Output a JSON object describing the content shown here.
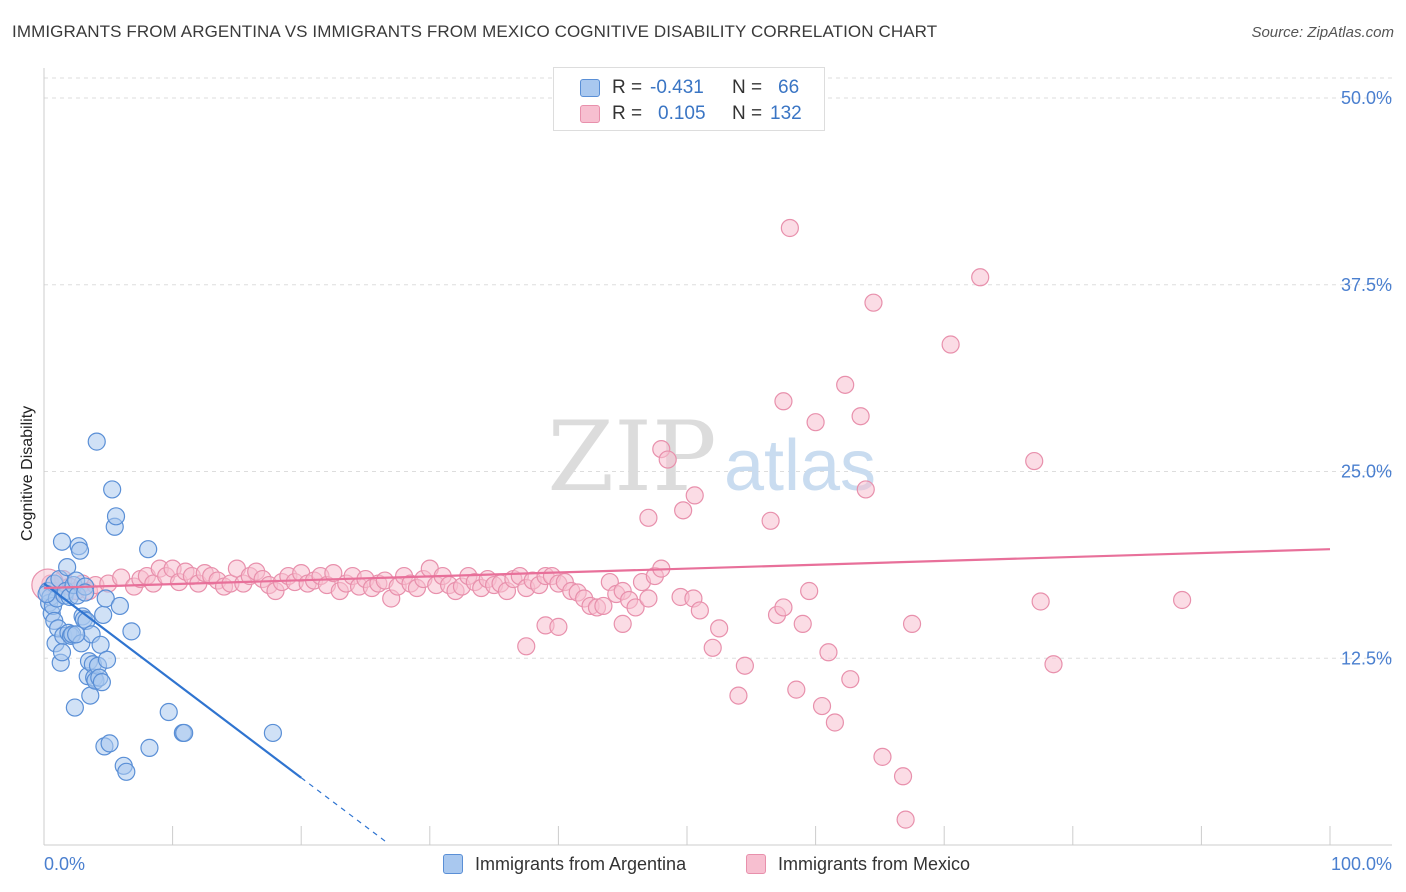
{
  "header": {
    "title": "IMMIGRANTS FROM ARGENTINA VS IMMIGRANTS FROM MEXICO COGNITIVE DISABILITY CORRELATION CHART",
    "source": "Source: ZipAtlas.com"
  },
  "watermark": {
    "zip": "ZIP",
    "atlas": "atlas"
  },
  "legend": {
    "rows": [
      {
        "r_label": "R =",
        "r_value": "-0.431",
        "n_label": "N =",
        "n_value": "66"
      },
      {
        "r_label": "R =",
        "r_value": "0.105",
        "n_label": "N =",
        "n_value": "132"
      }
    ]
  },
  "bottom_legend": {
    "argentina": "Immigrants from Argentina",
    "mexico": "Immigrants from Mexico"
  },
  "colors": {
    "argentina_fill": "#a9c8ef",
    "argentina_stroke": "#5a8fd6",
    "argentina_line": "#2f74d0",
    "mexico_fill": "#f7bfd0",
    "mexico_stroke": "#e890ac",
    "mexico_line": "#e8709a",
    "tick_label": "#4a7fcf"
  },
  "chart_data": {
    "type": "scatter",
    "title": "IMMIGRANTS FROM ARGENTINA VS IMMIGRANTS FROM MEXICO COGNITIVE DISABILITY CORRELATION CHART",
    "xlabel": "",
    "ylabel": "Cognitive Disability",
    "xlim": [
      0,
      100
    ],
    "ylim": [
      0,
      50
    ],
    "x_tick_labels": [
      "0.0%",
      "100.0%"
    ],
    "y_ticks": [
      12.5,
      25.0,
      37.5,
      50.0
    ],
    "y_tick_labels": [
      "12.5%",
      "25.0%",
      "37.5%",
      "50.0%"
    ],
    "grid": true,
    "series": [
      {
        "name": "Immigrants from Argentina",
        "R": -0.431,
        "N": 66,
        "trend": {
          "x0": 0,
          "y0": 17.5,
          "x1": 20,
          "y1": 4.5,
          "dash_to_x": 26.7
        },
        "points": [
          [
            0.3,
            17.0
          ],
          [
            0.4,
            16.2
          ],
          [
            0.5,
            16.6
          ],
          [
            0.6,
            15.5
          ],
          [
            0.7,
            16.0
          ],
          [
            0.8,
            17.5
          ],
          [
            0.8,
            15.0
          ],
          [
            0.9,
            13.5
          ],
          [
            1.0,
            16.5
          ],
          [
            1.1,
            14.5
          ],
          [
            1.2,
            17.8
          ],
          [
            1.3,
            12.2
          ],
          [
            1.4,
            20.3
          ],
          [
            1.5,
            14.0
          ],
          [
            1.6,
            16.7
          ],
          [
            1.7,
            17.0
          ],
          [
            1.8,
            18.6
          ],
          [
            1.9,
            14.2
          ],
          [
            2.0,
            16.6
          ],
          [
            2.1,
            14.0
          ],
          [
            2.2,
            14.1
          ],
          [
            2.3,
            17.4
          ],
          [
            2.4,
            9.2
          ],
          [
            2.5,
            17.7
          ],
          [
            2.6,
            16.7
          ],
          [
            2.7,
            20.0
          ],
          [
            2.8,
            19.7
          ],
          [
            2.9,
            13.5
          ],
          [
            3.0,
            15.3
          ],
          [
            3.1,
            15.1
          ],
          [
            3.2,
            17.3
          ],
          [
            3.3,
            15.0
          ],
          [
            3.4,
            11.3
          ],
          [
            3.5,
            12.3
          ],
          [
            3.6,
            10.0
          ],
          [
            3.7,
            14.1
          ],
          [
            3.8,
            12.1
          ],
          [
            3.9,
            11.2
          ],
          [
            4.0,
            11.0
          ],
          [
            4.1,
            27.0
          ],
          [
            4.2,
            12.0
          ],
          [
            4.3,
            11.2
          ],
          [
            4.4,
            13.4
          ],
          [
            4.5,
            10.9
          ],
          [
            4.6,
            15.4
          ],
          [
            4.7,
            6.6
          ],
          [
            4.8,
            16.5
          ],
          [
            4.9,
            12.4
          ],
          [
            5.1,
            6.8
          ],
          [
            5.3,
            23.8
          ],
          [
            5.5,
            21.3
          ],
          [
            5.6,
            22.0
          ],
          [
            5.9,
            16.0
          ],
          [
            6.2,
            5.3
          ],
          [
            6.4,
            4.9
          ],
          [
            6.8,
            14.3
          ],
          [
            8.1,
            19.8
          ],
          [
            8.2,
            6.5
          ],
          [
            9.7,
            8.9
          ],
          [
            10.8,
            7.5
          ],
          [
            10.9,
            7.5
          ],
          [
            17.8,
            7.5
          ],
          [
            1.4,
            12.9
          ],
          [
            2.5,
            14.1
          ],
          [
            3.2,
            16.9
          ],
          [
            0.2,
            16.8
          ]
        ]
      },
      {
        "name": "Immigrants from Mexico",
        "R": 0.105,
        "N": 132,
        "trend": {
          "x0": 0,
          "y0": 17.2,
          "x1": 100,
          "y1": 19.8
        },
        "points": [
          [
            0.5,
            17.5
          ],
          [
            1.0,
            17.0
          ],
          [
            1.5,
            17.8
          ],
          [
            2.0,
            17.3
          ],
          [
            2.5,
            17.0
          ],
          [
            3.0,
            17.5
          ],
          [
            3.5,
            17.0
          ],
          [
            4.0,
            17.4
          ],
          [
            5.0,
            17.5
          ],
          [
            6.0,
            17.9
          ],
          [
            7.0,
            17.3
          ],
          [
            7.5,
            17.8
          ],
          [
            8.0,
            18.0
          ],
          [
            8.5,
            17.5
          ],
          [
            9.0,
            18.5
          ],
          [
            9.5,
            18.0
          ],
          [
            10.0,
            18.5
          ],
          [
            10.5,
            17.6
          ],
          [
            11.0,
            18.3
          ],
          [
            11.5,
            18.0
          ],
          [
            12.0,
            17.5
          ],
          [
            12.5,
            18.2
          ],
          [
            13.0,
            18.0
          ],
          [
            13.5,
            17.7
          ],
          [
            14.0,
            17.3
          ],
          [
            14.5,
            17.5
          ],
          [
            15.0,
            18.5
          ],
          [
            15.5,
            17.5
          ],
          [
            16.0,
            18.0
          ],
          [
            16.5,
            18.3
          ],
          [
            17.0,
            17.8
          ],
          [
            17.5,
            17.4
          ],
          [
            18.0,
            17.0
          ],
          [
            18.5,
            17.6
          ],
          [
            19.0,
            18.0
          ],
          [
            19.5,
            17.6
          ],
          [
            20.0,
            18.2
          ],
          [
            20.5,
            17.5
          ],
          [
            21.0,
            17.7
          ],
          [
            21.5,
            18.0
          ],
          [
            22.0,
            17.4
          ],
          [
            22.5,
            18.2
          ],
          [
            23.0,
            17.0
          ],
          [
            23.5,
            17.5
          ],
          [
            24.0,
            18.0
          ],
          [
            24.5,
            17.3
          ],
          [
            25.0,
            17.8
          ],
          [
            25.5,
            17.2
          ],
          [
            26.0,
            17.5
          ],
          [
            26.5,
            17.7
          ],
          [
            27.0,
            16.5
          ],
          [
            27.5,
            17.3
          ],
          [
            28.0,
            18.0
          ],
          [
            28.5,
            17.5
          ],
          [
            29.0,
            17.2
          ],
          [
            29.5,
            17.8
          ],
          [
            30.0,
            18.5
          ],
          [
            30.5,
            17.4
          ],
          [
            31.0,
            18.0
          ],
          [
            31.5,
            17.4
          ],
          [
            32.0,
            17.0
          ],
          [
            32.5,
            17.3
          ],
          [
            33.0,
            18.0
          ],
          [
            33.5,
            17.6
          ],
          [
            34.0,
            17.2
          ],
          [
            34.5,
            17.8
          ],
          [
            35.0,
            17.4
          ],
          [
            35.5,
            17.5
          ],
          [
            36.0,
            17.0
          ],
          [
            36.5,
            17.8
          ],
          [
            37.0,
            18.0
          ],
          [
            37.5,
            17.2
          ],
          [
            38.0,
            17.7
          ],
          [
            38.5,
            17.4
          ],
          [
            39.0,
            18.0
          ],
          [
            39.5,
            18.0
          ],
          [
            40.0,
            17.5
          ],
          [
            40.5,
            17.6
          ],
          [
            41.0,
            17.0
          ],
          [
            41.5,
            16.9
          ],
          [
            42.0,
            16.5
          ],
          [
            42.5,
            16.0
          ],
          [
            43.0,
            15.9
          ],
          [
            43.5,
            16.0
          ],
          [
            44.0,
            17.6
          ],
          [
            44.5,
            16.8
          ],
          [
            45.0,
            17.0
          ],
          [
            45.5,
            16.4
          ],
          [
            46.0,
            15.9
          ],
          [
            46.5,
            17.6
          ],
          [
            47.0,
            16.5
          ],
          [
            47.5,
            18.0
          ],
          [
            48.0,
            18.5
          ],
          [
            37.5,
            13.3
          ],
          [
            39.0,
            14.7
          ],
          [
            40.0,
            14.6
          ],
          [
            45.0,
            14.8
          ],
          [
            48.0,
            26.5
          ],
          [
            47.0,
            21.9
          ],
          [
            48.5,
            25.8
          ],
          [
            49.5,
            16.6
          ],
          [
            50.5,
            16.5
          ],
          [
            49.7,
            22.4
          ],
          [
            50.6,
            23.4
          ],
          [
            51.0,
            15.7
          ],
          [
            52.0,
            13.2
          ],
          [
            52.5,
            14.5
          ],
          [
            54.0,
            10.0
          ],
          [
            54.5,
            12.0
          ],
          [
            56.5,
            21.7
          ],
          [
            57.0,
            15.4
          ],
          [
            57.5,
            15.9
          ],
          [
            58.5,
            10.4
          ],
          [
            59.0,
            14.8
          ],
          [
            59.5,
            17.0
          ],
          [
            60.5,
            9.3
          ],
          [
            61.0,
            12.9
          ],
          [
            58.0,
            41.3
          ],
          [
            57.5,
            29.7
          ],
          [
            60.0,
            28.3
          ],
          [
            61.5,
            8.2
          ],
          [
            62.3,
            30.8
          ],
          [
            62.7,
            11.1
          ],
          [
            63.5,
            28.7
          ],
          [
            63.9,
            23.8
          ],
          [
            64.5,
            36.3
          ],
          [
            65.2,
            5.9
          ],
          [
            66.8,
            4.6
          ],
          [
            67.0,
            1.7
          ],
          [
            67.5,
            14.8
          ],
          [
            70.5,
            33.5
          ],
          [
            72.8,
            38.0
          ],
          [
            77.0,
            25.7
          ],
          [
            77.5,
            16.3
          ],
          [
            78.5,
            12.1
          ],
          [
            88.5,
            16.4
          ]
        ]
      }
    ]
  }
}
